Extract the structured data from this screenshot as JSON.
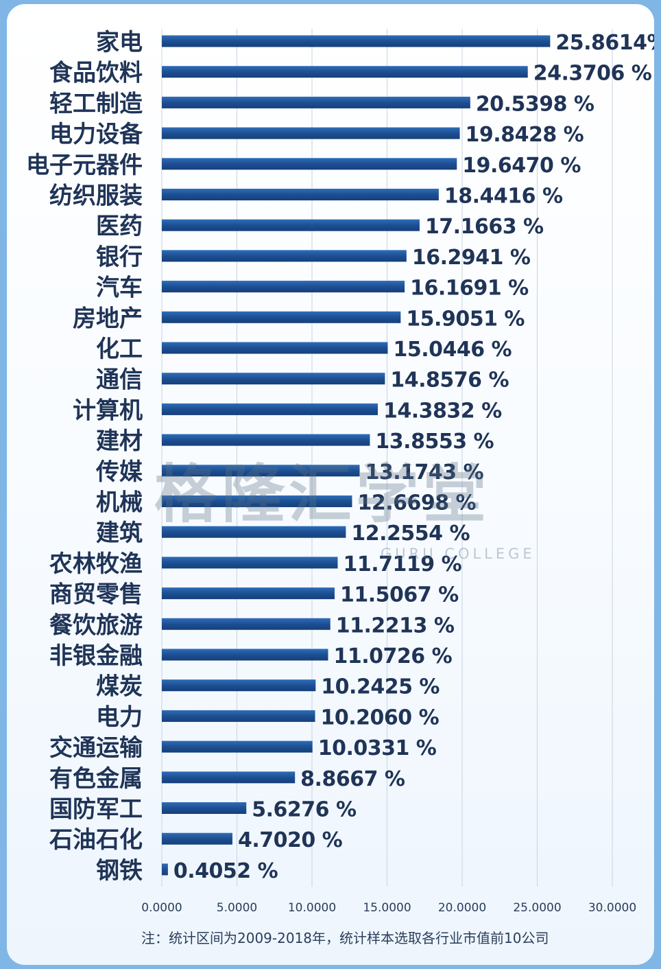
{
  "chart_data": {
    "type": "bar",
    "orientation": "horizontal",
    "categories": [
      "家电",
      "食品饮料",
      "轻工制造",
      "电力设备",
      "电子元器件",
      "纺织服装",
      "医药",
      "银行",
      "汽车",
      "房地产",
      "化工",
      "通信",
      "计算机",
      "建材",
      "传媒",
      "机械",
      "建筑",
      "农林牧渔",
      "商贸零售",
      "餐饮旅游",
      "非银金融",
      "煤炭",
      "电力",
      "交通运输",
      "有色金属",
      "国防军工",
      "石油石化",
      "钢铁"
    ],
    "values": [
      25.8614,
      24.3706,
      20.5398,
      19.8428,
      19.647,
      18.4416,
      17.1663,
      16.2941,
      16.1691,
      15.9051,
      15.0446,
      14.8576,
      14.3832,
      13.8553,
      13.1743,
      12.6698,
      12.2554,
      11.7119,
      11.5067,
      11.2213,
      11.0726,
      10.2425,
      10.206,
      10.0331,
      8.8667,
      5.6276,
      4.702,
      0.4052
    ],
    "value_labels": [
      "25.8614%",
      "24.3706 %",
      "20.5398 %",
      "19.8428 %",
      "19.6470 %",
      "18.4416 %",
      "17.1663 %",
      "16.2941 %",
      "16.1691 %",
      "15.9051 %",
      "15.0446 %",
      "14.8576 %",
      "14.3832 %",
      "13.8553 %",
      "13.1743 %",
      "12.6698 %",
      "12.2554 %",
      "11.7119 %",
      "11.5067 %",
      "11.2213 %",
      "11.0726 %",
      "10.2425 %",
      "10.2060 %",
      "10.0331 %",
      "8.8667 %",
      "5.6276 %",
      "4.7020 %",
      "0.4052 %"
    ],
    "x_ticks": [
      "0.0000",
      "5.0000",
      "10.0000",
      "15.0000",
      "20.0000",
      "25.0000",
      "30.0000"
    ],
    "xlim": [
      0,
      30
    ],
    "grid": true,
    "bar_color": "#1d4f93",
    "title": "",
    "xlabel": "",
    "ylabel": ""
  },
  "watermark": {
    "text": "格隆汇学堂",
    "subtext": "GURU COLLEGE"
  },
  "footnote": "注：统计区间为2009-2018年，统计样本选取各行业市值前10公司"
}
